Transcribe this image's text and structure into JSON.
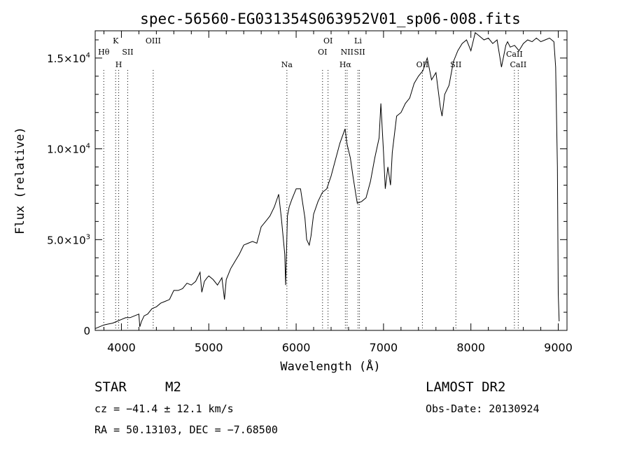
{
  "chart_data": {
    "type": "line",
    "title": "spec-56560-EG031354S063952V01_sp06-008.fits",
    "xlabel": "Wavelength (Å)",
    "ylabel": "Flux (relative)",
    "xlim": [
      3700,
      9100
    ],
    "ylim": [
      0,
      16500
    ],
    "grid": false,
    "x_ticks": [
      {
        "value": 4000,
        "label": "4000"
      },
      {
        "value": 5000,
        "label": "5000"
      },
      {
        "value": 6000,
        "label": "6000"
      },
      {
        "value": 7000,
        "label": "7000"
      },
      {
        "value": 8000,
        "label": "8000"
      },
      {
        "value": 9000,
        "label": "9000"
      }
    ],
    "y_ticks": [
      {
        "value": 0,
        "base": "0",
        "exp": ""
      },
      {
        "value": 5000,
        "base": "5.0×10",
        "exp": "3"
      },
      {
        "value": 10000,
        "base": "1.0×10",
        "exp": "4"
      },
      {
        "value": 15000,
        "base": "1.5×10",
        "exp": "4"
      }
    ],
    "lines": [
      {
        "label": "Hθ",
        "wavelength": 3798,
        "row": 2
      },
      {
        "label": "K",
        "wavelength": 3934,
        "row": 0
      },
      {
        "label": "H",
        "wavelength": 3969,
        "row": 3
      },
      {
        "label": "SII",
        "wavelength": 4072,
        "row": 2
      },
      {
        "label": "OIII",
        "wavelength": 4364,
        "row": 0
      },
      {
        "label": "Na",
        "wavelength": 5894,
        "row": 3
      },
      {
        "label": "OI",
        "wavelength": 6302,
        "row": 2
      },
      {
        "label": "OI",
        "wavelength": 6365,
        "row": 0
      },
      {
        "label": "Hα",
        "wavelength": 6563,
        "row": 3
      },
      {
        "label": "NII",
        "wavelength": 6583,
        "row": 2
      },
      {
        "label": "Li",
        "wavelength": 6708,
        "row": 0
      },
      {
        "label": "SII",
        "wavelength": 6725,
        "row": 2
      },
      {
        "label": "OII",
        "wavelength": 7445,
        "row": 3
      },
      {
        "label": "SII",
        "wavelength": 7828,
        "row": 3
      },
      {
        "label": "CaII",
        "wavelength": 8498,
        "row": 1
      },
      {
        "label": "CaII",
        "wavelength": 8542,
        "row": 3
      }
    ],
    "series": [
      {
        "x": [
          3700,
          3750,
          3800,
          3850,
          3900,
          3950,
          4000,
          4050,
          4100,
          4150,
          4200,
          4210,
          4230,
          4260,
          4300,
          4350,
          4400,
          4450,
          4500,
          4550,
          4600,
          4650,
          4700,
          4750,
          4800,
          4850,
          4900,
          4920,
          4950,
          4980,
          5000,
          5050,
          5100,
          5150,
          5180,
          5200,
          5250,
          5300,
          5350,
          5400,
          5450,
          5500,
          5550,
          5600,
          5650,
          5700,
          5750,
          5800,
          5830,
          5870,
          5880,
          5900,
          5920,
          5950,
          6000,
          6050,
          6100,
          6120,
          6150,
          6170,
          6200,
          6250,
          6300,
          6350,
          6400,
          6450,
          6500,
          6530,
          6560,
          6580,
          6620,
          6650,
          6680,
          6700,
          6750,
          6800,
          6850,
          6900,
          6950,
          6970,
          7000,
          7020,
          7050,
          7080,
          7100,
          7150,
          7200,
          7250,
          7300,
          7350,
          7400,
          7450,
          7500,
          7550,
          7600,
          7650,
          7670,
          7700,
          7750,
          7800,
          7850,
          7900,
          7950,
          8000,
          8050,
          8100,
          8150,
          8200,
          8250,
          8300,
          8350,
          8400,
          8420,
          8450,
          8500,
          8550,
          8600,
          8650,
          8700,
          8750,
          8800,
          8850,
          8900,
          8950,
          8970,
          8990,
          9000,
          9010
        ],
        "y": [
          100,
          200,
          300,
          350,
          400,
          500,
          600,
          700,
          700,
          800,
          900,
          200,
          500,
          800,
          900,
          1200,
          1300,
          1500,
          1600,
          1700,
          2200,
          2200,
          2300,
          2600,
          2500,
          2700,
          3200,
          2100,
          2700,
          2900,
          3000,
          2800,
          2500,
          2900,
          1700,
          2800,
          3400,
          3800,
          4200,
          4700,
          4800,
          4900,
          4800,
          5700,
          6000,
          6300,
          6800,
          7500,
          6200,
          4200,
          2500,
          6300,
          6800,
          7200,
          7800,
          7800,
          6200,
          5000,
          4700,
          5200,
          6400,
          7100,
          7600,
          7800,
          8500,
          9400,
          10300,
          10700,
          11100,
          10300,
          9500,
          8500,
          7600,
          7000,
          7100,
          7300,
          8200,
          9500,
          10600,
          12500,
          9800,
          7800,
          9000,
          8000,
          9800,
          11800,
          12000,
          12500,
          12800,
          13600,
          14000,
          14300,
          15000,
          13800,
          14200,
          12300,
          11800,
          13000,
          13500,
          14800,
          15400,
          15800,
          16000,
          15400,
          16400,
          16200,
          16000,
          16100,
          15800,
          16000,
          14500,
          15700,
          15900,
          15600,
          15700,
          15400,
          15800,
          16000,
          15900,
          16100,
          15900,
          16000,
          16100,
          15900,
          14500,
          9000,
          2000,
          500
        ]
      }
    ]
  },
  "footer": {
    "object_class": "STAR",
    "subclass": "M2",
    "redshift_line": "cz = −41.4 ± 12.1 km/s",
    "coords_line": "RA =  50.13103, DEC =  −7.68500",
    "survey": "LAMOST DR2",
    "obs_date": "Obs-Date: 20130924"
  }
}
